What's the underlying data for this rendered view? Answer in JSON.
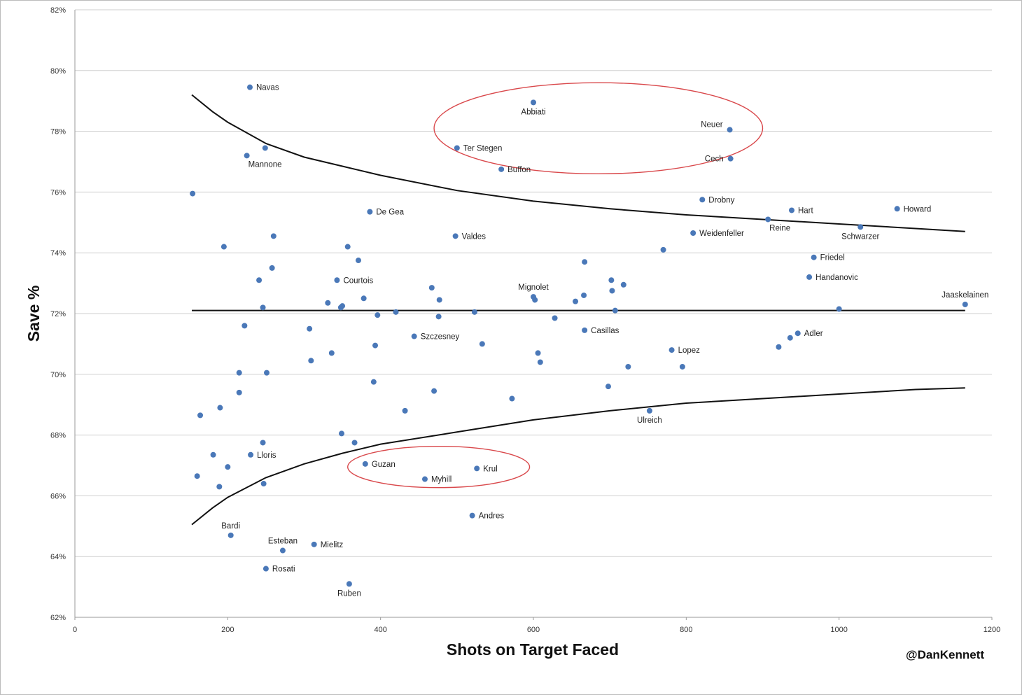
{
  "chart_data": {
    "type": "scatter",
    "title": "",
    "xlabel": "Shots on Target Faced",
    "ylabel": "Save %",
    "credit": "@DanKennett",
    "xlim": [
      0,
      1200
    ],
    "ylim": [
      62,
      82
    ],
    "x_ticks": [
      "0",
      "200",
      "400",
      "600",
      "800",
      "1000",
      "1200"
    ],
    "y_ticks": [
      "62%",
      "64%",
      "66%",
      "68%",
      "70%",
      "72%",
      "74%",
      "76%",
      "78%",
      "80%",
      "82%"
    ],
    "grid": "horizontal",
    "point_color": "#4a78b8",
    "line_color": "#111111",
    "highlight_color": "#d9484b",
    "reference_lines": {
      "mean_y": 72.1,
      "mean_x_range": [
        153,
        1165
      ],
      "upper_band": [
        [
          153,
          79.2
        ],
        [
          180,
          78.65
        ],
        [
          200,
          78.3
        ],
        [
          250,
          77.6
        ],
        [
          300,
          77.15
        ],
        [
          350,
          76.85
        ],
        [
          400,
          76.55
        ],
        [
          500,
          76.05
        ],
        [
          600,
          75.7
        ],
        [
          700,
          75.45
        ],
        [
          800,
          75.25
        ],
        [
          900,
          75.1
        ],
        [
          1000,
          74.95
        ],
        [
          1100,
          74.8
        ],
        [
          1165,
          74.7
        ]
      ],
      "lower_band": [
        [
          153,
          65.05
        ],
        [
          180,
          65.6
        ],
        [
          200,
          65.95
        ],
        [
          250,
          66.6
        ],
        [
          300,
          67.05
        ],
        [
          350,
          67.4
        ],
        [
          400,
          67.7
        ],
        [
          500,
          68.1
        ],
        [
          600,
          68.5
        ],
        [
          700,
          68.8
        ],
        [
          800,
          69.05
        ],
        [
          900,
          69.2
        ],
        [
          1000,
          69.35
        ],
        [
          1100,
          69.5
        ],
        [
          1165,
          69.55
        ]
      ]
    },
    "highlight_ellipses": [
      {
        "cx": 685,
        "cy": 78.1,
        "rx": 215,
        "ry": 1.5
      },
      {
        "cx": 476,
        "cy": 66.95,
        "rx": 119,
        "ry": 0.68
      }
    ],
    "points": [
      {
        "x": 229,
        "y": 79.45,
        "label": "Navas",
        "pos": "right"
      },
      {
        "x": 600,
        "y": 78.95,
        "label": "Abbiati",
        "pos": "below"
      },
      {
        "x": 857,
        "y": 78.05,
        "label": "Neuer",
        "pos": "left-up"
      },
      {
        "x": 500,
        "y": 77.45,
        "label": "Ter Stegen",
        "pos": "right"
      },
      {
        "x": 858,
        "y": 77.1,
        "label": "Cech",
        "pos": "left"
      },
      {
        "x": 558,
        "y": 76.75,
        "label": "Buffon",
        "pos": "right"
      },
      {
        "x": 225,
        "y": 77.2,
        "label": "Mannone",
        "pos": "below-right"
      },
      {
        "x": 249,
        "y": 77.45,
        "label": ""
      },
      {
        "x": 154,
        "y": 75.95,
        "label": ""
      },
      {
        "x": 821,
        "y": 75.75,
        "label": "Drobny",
        "pos": "right"
      },
      {
        "x": 1076,
        "y": 75.45,
        "label": "Howard",
        "pos": "right"
      },
      {
        "x": 938,
        "y": 75.4,
        "label": "Hart",
        "pos": "right"
      },
      {
        "x": 386,
        "y": 75.35,
        "label": "De Gea",
        "pos": "right"
      },
      {
        "x": 907,
        "y": 75.1,
        "label": "Reine",
        "pos": "below-right"
      },
      {
        "x": 1028,
        "y": 74.85,
        "label": "Schwarzer",
        "pos": "below"
      },
      {
        "x": 809,
        "y": 74.65,
        "label": "Weidenfeller",
        "pos": "right"
      },
      {
        "x": 498,
        "y": 74.55,
        "label": "Valdes",
        "pos": "right"
      },
      {
        "x": 260,
        "y": 74.55,
        "label": ""
      },
      {
        "x": 195,
        "y": 74.2,
        "label": ""
      },
      {
        "x": 357,
        "y": 74.2,
        "label": ""
      },
      {
        "x": 770,
        "y": 74.1,
        "label": ""
      },
      {
        "x": 967,
        "y": 73.85,
        "label": "Friedel",
        "pos": "right"
      },
      {
        "x": 371,
        "y": 73.75,
        "label": ""
      },
      {
        "x": 667,
        "y": 73.7,
        "label": ""
      },
      {
        "x": 258,
        "y": 73.5,
        "label": ""
      },
      {
        "x": 961,
        "y": 73.2,
        "label": "Handanovic",
        "pos": "right"
      },
      {
        "x": 241,
        "y": 73.1,
        "label": ""
      },
      {
        "x": 343,
        "y": 73.1,
        "label": "Courtois",
        "pos": "right"
      },
      {
        "x": 702,
        "y": 73.1,
        "label": ""
      },
      {
        "x": 718,
        "y": 72.95,
        "label": ""
      },
      {
        "x": 467,
        "y": 72.85,
        "label": ""
      },
      {
        "x": 703,
        "y": 72.75,
        "label": ""
      },
      {
        "x": 666,
        "y": 72.6,
        "label": ""
      },
      {
        "x": 600,
        "y": 72.55,
        "label": "Mignolet",
        "pos": "above"
      },
      {
        "x": 602,
        "y": 72.45,
        "label": ""
      },
      {
        "x": 378,
        "y": 72.5,
        "label": ""
      },
      {
        "x": 477,
        "y": 72.45,
        "label": ""
      },
      {
        "x": 655,
        "y": 72.4,
        "label": ""
      },
      {
        "x": 331,
        "y": 72.35,
        "label": ""
      },
      {
        "x": 1165,
        "y": 72.3,
        "label": "Jaaskelainen",
        "pos": "above"
      },
      {
        "x": 350,
        "y": 72.25,
        "label": ""
      },
      {
        "x": 246,
        "y": 72.2,
        "label": ""
      },
      {
        "x": 348,
        "y": 72.2,
        "label": ""
      },
      {
        "x": 1000,
        "y": 72.15,
        "label": ""
      },
      {
        "x": 707,
        "y": 72.1,
        "label": ""
      },
      {
        "x": 420,
        "y": 72.05,
        "label": ""
      },
      {
        "x": 523,
        "y": 72.05,
        "label": ""
      },
      {
        "x": 396,
        "y": 71.95,
        "label": ""
      },
      {
        "x": 476,
        "y": 71.9,
        "label": ""
      },
      {
        "x": 628,
        "y": 71.85,
        "label": ""
      },
      {
        "x": 222,
        "y": 71.6,
        "label": ""
      },
      {
        "x": 307,
        "y": 71.5,
        "label": ""
      },
      {
        "x": 667,
        "y": 71.45,
        "label": "Casillas",
        "pos": "right"
      },
      {
        "x": 946,
        "y": 71.35,
        "label": "Adler",
        "pos": "right"
      },
      {
        "x": 444,
        "y": 71.25,
        "label": "Szczesney",
        "pos": "right"
      },
      {
        "x": 936,
        "y": 71.2,
        "label": ""
      },
      {
        "x": 533,
        "y": 71.0,
        "label": ""
      },
      {
        "x": 393,
        "y": 70.95,
        "label": ""
      },
      {
        "x": 921,
        "y": 70.9,
        "label": ""
      },
      {
        "x": 781,
        "y": 70.8,
        "label": "Lopez",
        "pos": "right"
      },
      {
        "x": 336,
        "y": 70.7,
        "label": ""
      },
      {
        "x": 606,
        "y": 70.7,
        "label": ""
      },
      {
        "x": 309,
        "y": 70.45,
        "label": ""
      },
      {
        "x": 609,
        "y": 70.4,
        "label": ""
      },
      {
        "x": 724,
        "y": 70.25,
        "label": ""
      },
      {
        "x": 795,
        "y": 70.25,
        "label": ""
      },
      {
        "x": 215,
        "y": 70.05,
        "label": ""
      },
      {
        "x": 251,
        "y": 70.05,
        "label": ""
      },
      {
        "x": 391,
        "y": 69.75,
        "label": ""
      },
      {
        "x": 698,
        "y": 69.6,
        "label": ""
      },
      {
        "x": 470,
        "y": 69.45,
        "label": ""
      },
      {
        "x": 215,
        "y": 69.4,
        "label": ""
      },
      {
        "x": 572,
        "y": 69.2,
        "label": ""
      },
      {
        "x": 190,
        "y": 68.9,
        "label": ""
      },
      {
        "x": 432,
        "y": 68.8,
        "label": ""
      },
      {
        "x": 752,
        "y": 68.8,
        "label": "Ulreich",
        "pos": "below"
      },
      {
        "x": 164,
        "y": 68.65,
        "label": ""
      },
      {
        "x": 349,
        "y": 68.05,
        "label": ""
      },
      {
        "x": 246,
        "y": 67.75,
        "label": ""
      },
      {
        "x": 366,
        "y": 67.75,
        "label": ""
      },
      {
        "x": 181,
        "y": 67.35,
        "label": ""
      },
      {
        "x": 230,
        "y": 67.35,
        "label": "Lloris",
        "pos": "right"
      },
      {
        "x": 380,
        "y": 67.05,
        "label": "Guzan",
        "pos": "right"
      },
      {
        "x": 200,
        "y": 66.95,
        "label": ""
      },
      {
        "x": 526,
        "y": 66.9,
        "label": "Krul",
        "pos": "right"
      },
      {
        "x": 160,
        "y": 66.65,
        "label": ""
      },
      {
        "x": 458,
        "y": 66.55,
        "label": "Myhill",
        "pos": "right"
      },
      {
        "x": 247,
        "y": 66.4,
        "label": ""
      },
      {
        "x": 189,
        "y": 66.3,
        "label": ""
      },
      {
        "x": 520,
        "y": 65.35,
        "label": "Andres",
        "pos": "right"
      },
      {
        "x": 204,
        "y": 64.7,
        "label": "Bardi",
        "pos": "above"
      },
      {
        "x": 313,
        "y": 64.4,
        "label": "Mielitz",
        "pos": "right"
      },
      {
        "x": 272,
        "y": 64.2,
        "label": "Esteban",
        "pos": "above"
      },
      {
        "x": 250,
        "y": 63.6,
        "label": "Rosati",
        "pos": "right"
      },
      {
        "x": 359,
        "y": 63.1,
        "label": "Ruben",
        "pos": "below"
      }
    ]
  }
}
